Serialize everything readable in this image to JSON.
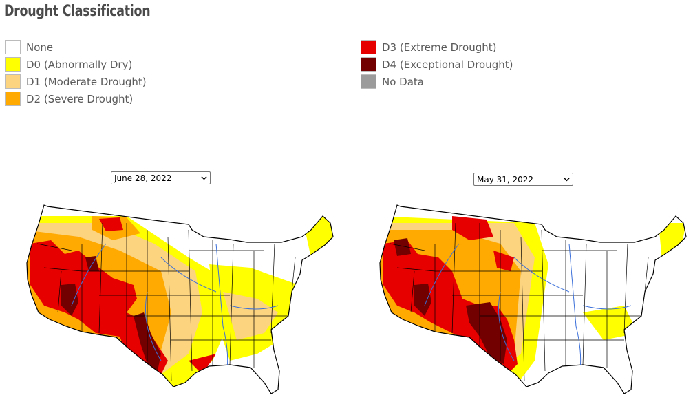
{
  "title": "Drought Classification",
  "legend": {
    "left": [
      {
        "label": "None",
        "color": "#ffffff"
      },
      {
        "label": "D0 (Abnormally Dry)",
        "color": "#ffff00"
      },
      {
        "label": "D1 (Moderate Drought)",
        "color": "#fcd37f"
      },
      {
        "label": "D2 (Severe Drought)",
        "color": "#ffaa00"
      }
    ],
    "right": [
      {
        "label": "D3 (Extreme Drought)",
        "color": "#e60000"
      },
      {
        "label": "D4 (Exceptional Drought)",
        "color": "#730000"
      },
      {
        "label": "No Data",
        "color": "#9b9b9b"
      }
    ]
  },
  "maps": [
    {
      "date": "June 28, 2022",
      "icon": "chevron-down-icon"
    },
    {
      "date": "May 31, 2022",
      "icon": "chevron-down-icon"
    }
  ]
}
